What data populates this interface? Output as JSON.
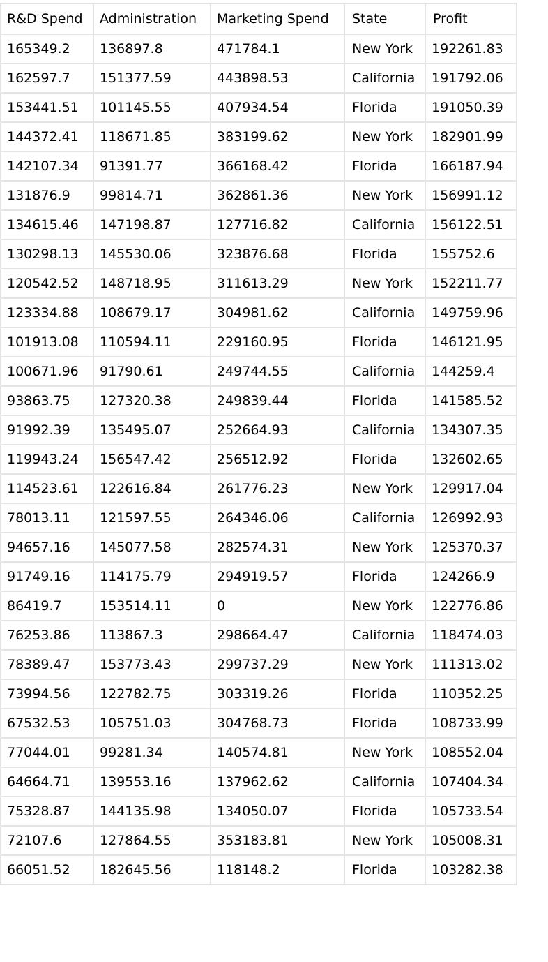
{
  "table": {
    "columns": [
      "R&D Spend",
      "Administration",
      "Marketing Spend",
      "State",
      "Profit"
    ],
    "rows": [
      [
        "165349.2",
        "136897.8",
        "471784.1",
        "New York",
        "192261.83"
      ],
      [
        "162597.7",
        "151377.59",
        "443898.53",
        "California",
        "191792.06"
      ],
      [
        "153441.51",
        "101145.55",
        "407934.54",
        "Florida",
        "191050.39"
      ],
      [
        "144372.41",
        "118671.85",
        "383199.62",
        "New York",
        "182901.99"
      ],
      [
        "142107.34",
        "91391.77",
        "366168.42",
        "Florida",
        "166187.94"
      ],
      [
        "131876.9",
        "99814.71",
        "362861.36",
        "New York",
        "156991.12"
      ],
      [
        "134615.46",
        "147198.87",
        "127716.82",
        "California",
        "156122.51"
      ],
      [
        "130298.13",
        "145530.06",
        "323876.68",
        "Florida",
        "155752.6"
      ],
      [
        "120542.52",
        "148718.95",
        "311613.29",
        "New York",
        "152211.77"
      ],
      [
        "123334.88",
        "108679.17",
        "304981.62",
        "California",
        "149759.96"
      ],
      [
        "101913.08",
        "110594.11",
        "229160.95",
        "Florida",
        "146121.95"
      ],
      [
        "100671.96",
        "91790.61",
        "249744.55",
        "California",
        "144259.4"
      ],
      [
        "93863.75",
        "127320.38",
        "249839.44",
        "Florida",
        "141585.52"
      ],
      [
        "91992.39",
        "135495.07",
        "252664.93",
        "California",
        "134307.35"
      ],
      [
        "119943.24",
        "156547.42",
        "256512.92",
        "Florida",
        "132602.65"
      ],
      [
        "114523.61",
        "122616.84",
        "261776.23",
        "New York",
        "129917.04"
      ],
      [
        "78013.11",
        "121597.55",
        "264346.06",
        "California",
        "126992.93"
      ],
      [
        "94657.16",
        "145077.58",
        "282574.31",
        "New York",
        "125370.37"
      ],
      [
        "91749.16",
        "114175.79",
        "294919.57",
        "Florida",
        "124266.9"
      ],
      [
        "86419.7",
        "153514.11",
        "0",
        "New York",
        "122776.86"
      ],
      [
        "76253.86",
        "113867.3",
        "298664.47",
        "California",
        "118474.03"
      ],
      [
        "78389.47",
        "153773.43",
        "299737.29",
        "New York",
        "111313.02"
      ],
      [
        "73994.56",
        "122782.75",
        "303319.26",
        "Florida",
        "110352.25"
      ],
      [
        "67532.53",
        "105751.03",
        "304768.73",
        "Florida",
        "108733.99"
      ],
      [
        "77044.01",
        "99281.34",
        "140574.81",
        "New York",
        "108552.04"
      ],
      [
        "64664.71",
        "139553.16",
        "137962.62",
        "California",
        "107404.34"
      ],
      [
        "75328.87",
        "144135.98",
        "134050.07",
        "Florida",
        "105733.54"
      ],
      [
        "72107.6",
        "127864.55",
        "353183.81",
        "New York",
        "105008.31"
      ],
      [
        "66051.52",
        "182645.56",
        "118148.2",
        "Florida",
        "103282.38"
      ]
    ]
  },
  "colors": {
    "border": "#e4e4e4",
    "text": "#000000",
    "background": "#ffffff"
  }
}
